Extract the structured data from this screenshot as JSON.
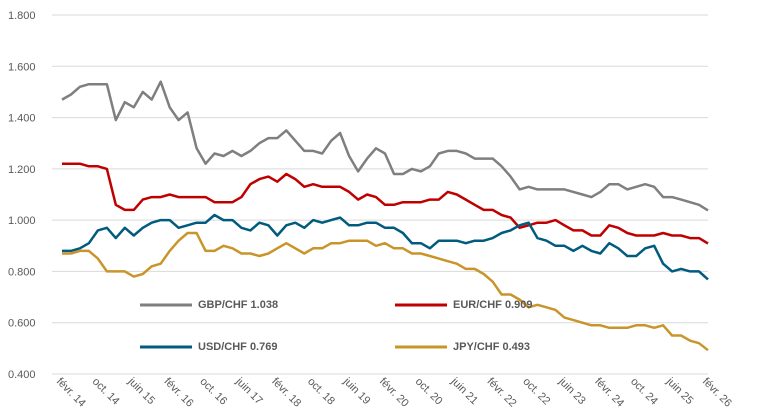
{
  "chart_data": {
    "type": "line",
    "categories": [
      "févr. 14",
      null,
      null,
      null,
      "oct. 14",
      null,
      null,
      null,
      "juin 15",
      null,
      null,
      null,
      "févr. 16",
      null,
      null,
      null,
      "oct. 16",
      null,
      null,
      null,
      "juin 17",
      null,
      null,
      null,
      "févr. 18",
      null,
      null,
      null,
      "oct. 18",
      null,
      null,
      null,
      "juin 19",
      null,
      null,
      null,
      "févr. 20",
      null,
      null,
      null,
      "oct. 20",
      null,
      null,
      null,
      "juin 21",
      null,
      null,
      null,
      "févr. 22",
      null,
      null,
      null,
      "oct. 22",
      null,
      null,
      null,
      "juin 23",
      null,
      null,
      null,
      "févr. 24",
      null,
      null,
      null,
      "oct. 24",
      null,
      null,
      null,
      "juin 25",
      null,
      null,
      null,
      "févr. 26"
    ],
    "series": [
      {
        "name": "GBP/CHF 1.038",
        "color": "#7f7f7f",
        "values": [
          1.47,
          1.49,
          1.52,
          1.53,
          1.53,
          1.53,
          1.39,
          1.46,
          1.44,
          1.5,
          1.47,
          1.54,
          1.44,
          1.39,
          1.42,
          1.28,
          1.22,
          1.26,
          1.25,
          1.27,
          1.25,
          1.27,
          1.3,
          1.32,
          1.32,
          1.35,
          1.31,
          1.27,
          1.27,
          1.26,
          1.31,
          1.34,
          1.25,
          1.19,
          1.24,
          1.28,
          1.26,
          1.18,
          1.18,
          1.2,
          1.19,
          1.21,
          1.26,
          1.27,
          1.27,
          1.26,
          1.24,
          1.24,
          1.24,
          1.21,
          1.17,
          1.12,
          1.13,
          1.12,
          1.12,
          1.12,
          1.12,
          1.11,
          1.1,
          1.09,
          1.11,
          1.14,
          1.14,
          1.12,
          1.13,
          1.14,
          1.13,
          1.09,
          1.09,
          1.08,
          1.07,
          1.06,
          1.038
        ]
      },
      {
        "name": "EUR/CHF 0.909",
        "color": "#c00000",
        "values": [
          1.22,
          1.22,
          1.22,
          1.21,
          1.21,
          1.2,
          1.06,
          1.04,
          1.04,
          1.08,
          1.09,
          1.09,
          1.1,
          1.09,
          1.09,
          1.09,
          1.09,
          1.07,
          1.07,
          1.07,
          1.09,
          1.14,
          1.16,
          1.17,
          1.15,
          1.18,
          1.16,
          1.13,
          1.14,
          1.13,
          1.13,
          1.13,
          1.11,
          1.08,
          1.1,
          1.09,
          1.06,
          1.06,
          1.07,
          1.07,
          1.07,
          1.08,
          1.08,
          1.11,
          1.1,
          1.08,
          1.06,
          1.04,
          1.04,
          1.02,
          1.01,
          0.97,
          0.98,
          0.99,
          0.99,
          1.0,
          0.98,
          0.96,
          0.96,
          0.94,
          0.94,
          0.98,
          0.97,
          0.95,
          0.94,
          0.94,
          0.94,
          0.95,
          0.94,
          0.94,
          0.93,
          0.93,
          0.909
        ]
      },
      {
        "name": "USD/CHF 0.769",
        "color": "#005b7f",
        "values": [
          0.88,
          0.88,
          0.89,
          0.91,
          0.96,
          0.97,
          0.93,
          0.97,
          0.94,
          0.97,
          0.99,
          1.0,
          1.0,
          0.97,
          0.98,
          0.99,
          0.99,
          1.02,
          1.0,
          1.0,
          0.97,
          0.96,
          0.99,
          0.98,
          0.94,
          0.98,
          0.99,
          0.97,
          1.0,
          0.99,
          1.0,
          1.01,
          0.98,
          0.98,
          0.99,
          0.99,
          0.97,
          0.97,
          0.95,
          0.91,
          0.91,
          0.89,
          0.92,
          0.92,
          0.92,
          0.91,
          0.92,
          0.92,
          0.93,
          0.95,
          0.96,
          0.98,
          0.99,
          0.93,
          0.92,
          0.9,
          0.9,
          0.88,
          0.9,
          0.88,
          0.87,
          0.91,
          0.89,
          0.86,
          0.86,
          0.89,
          0.9,
          0.83,
          0.8,
          0.81,
          0.8,
          0.8,
          0.769
        ]
      },
      {
        "name": "JPY/CHF 0.493",
        "color": "#c9952b",
        "values": [
          0.87,
          0.87,
          0.88,
          0.88,
          0.85,
          0.8,
          0.8,
          0.8,
          0.78,
          0.79,
          0.82,
          0.83,
          0.88,
          0.92,
          0.95,
          0.95,
          0.88,
          0.88,
          0.9,
          0.89,
          0.87,
          0.87,
          0.86,
          0.87,
          0.89,
          0.91,
          0.89,
          0.87,
          0.89,
          0.89,
          0.91,
          0.91,
          0.92,
          0.92,
          0.92,
          0.9,
          0.91,
          0.89,
          0.89,
          0.87,
          0.87,
          0.86,
          0.85,
          0.84,
          0.83,
          0.81,
          0.81,
          0.79,
          0.76,
          0.71,
          0.71,
          0.69,
          0.66,
          0.67,
          0.66,
          0.65,
          0.62,
          0.61,
          0.6,
          0.59,
          0.59,
          0.58,
          0.58,
          0.58,
          0.59,
          0.59,
          0.58,
          0.59,
          0.55,
          0.55,
          0.53,
          0.52,
          0.493
        ]
      }
    ],
    "ylim": [
      0.4,
      1.8
    ],
    "yticks": [
      {
        "value": 0.4,
        "label": "0.400"
      },
      {
        "value": 0.6,
        "label": "0.600"
      },
      {
        "value": 0.8,
        "label": "0.800"
      },
      {
        "value": 1.0,
        "label": "1.000"
      },
      {
        "value": 1.2,
        "label": "1.200"
      },
      {
        "value": 1.4,
        "label": "1.400"
      },
      {
        "value": 1.6,
        "label": "1.600"
      },
      {
        "value": 1.8,
        "label": "1.800"
      }
    ],
    "grid": true
  }
}
